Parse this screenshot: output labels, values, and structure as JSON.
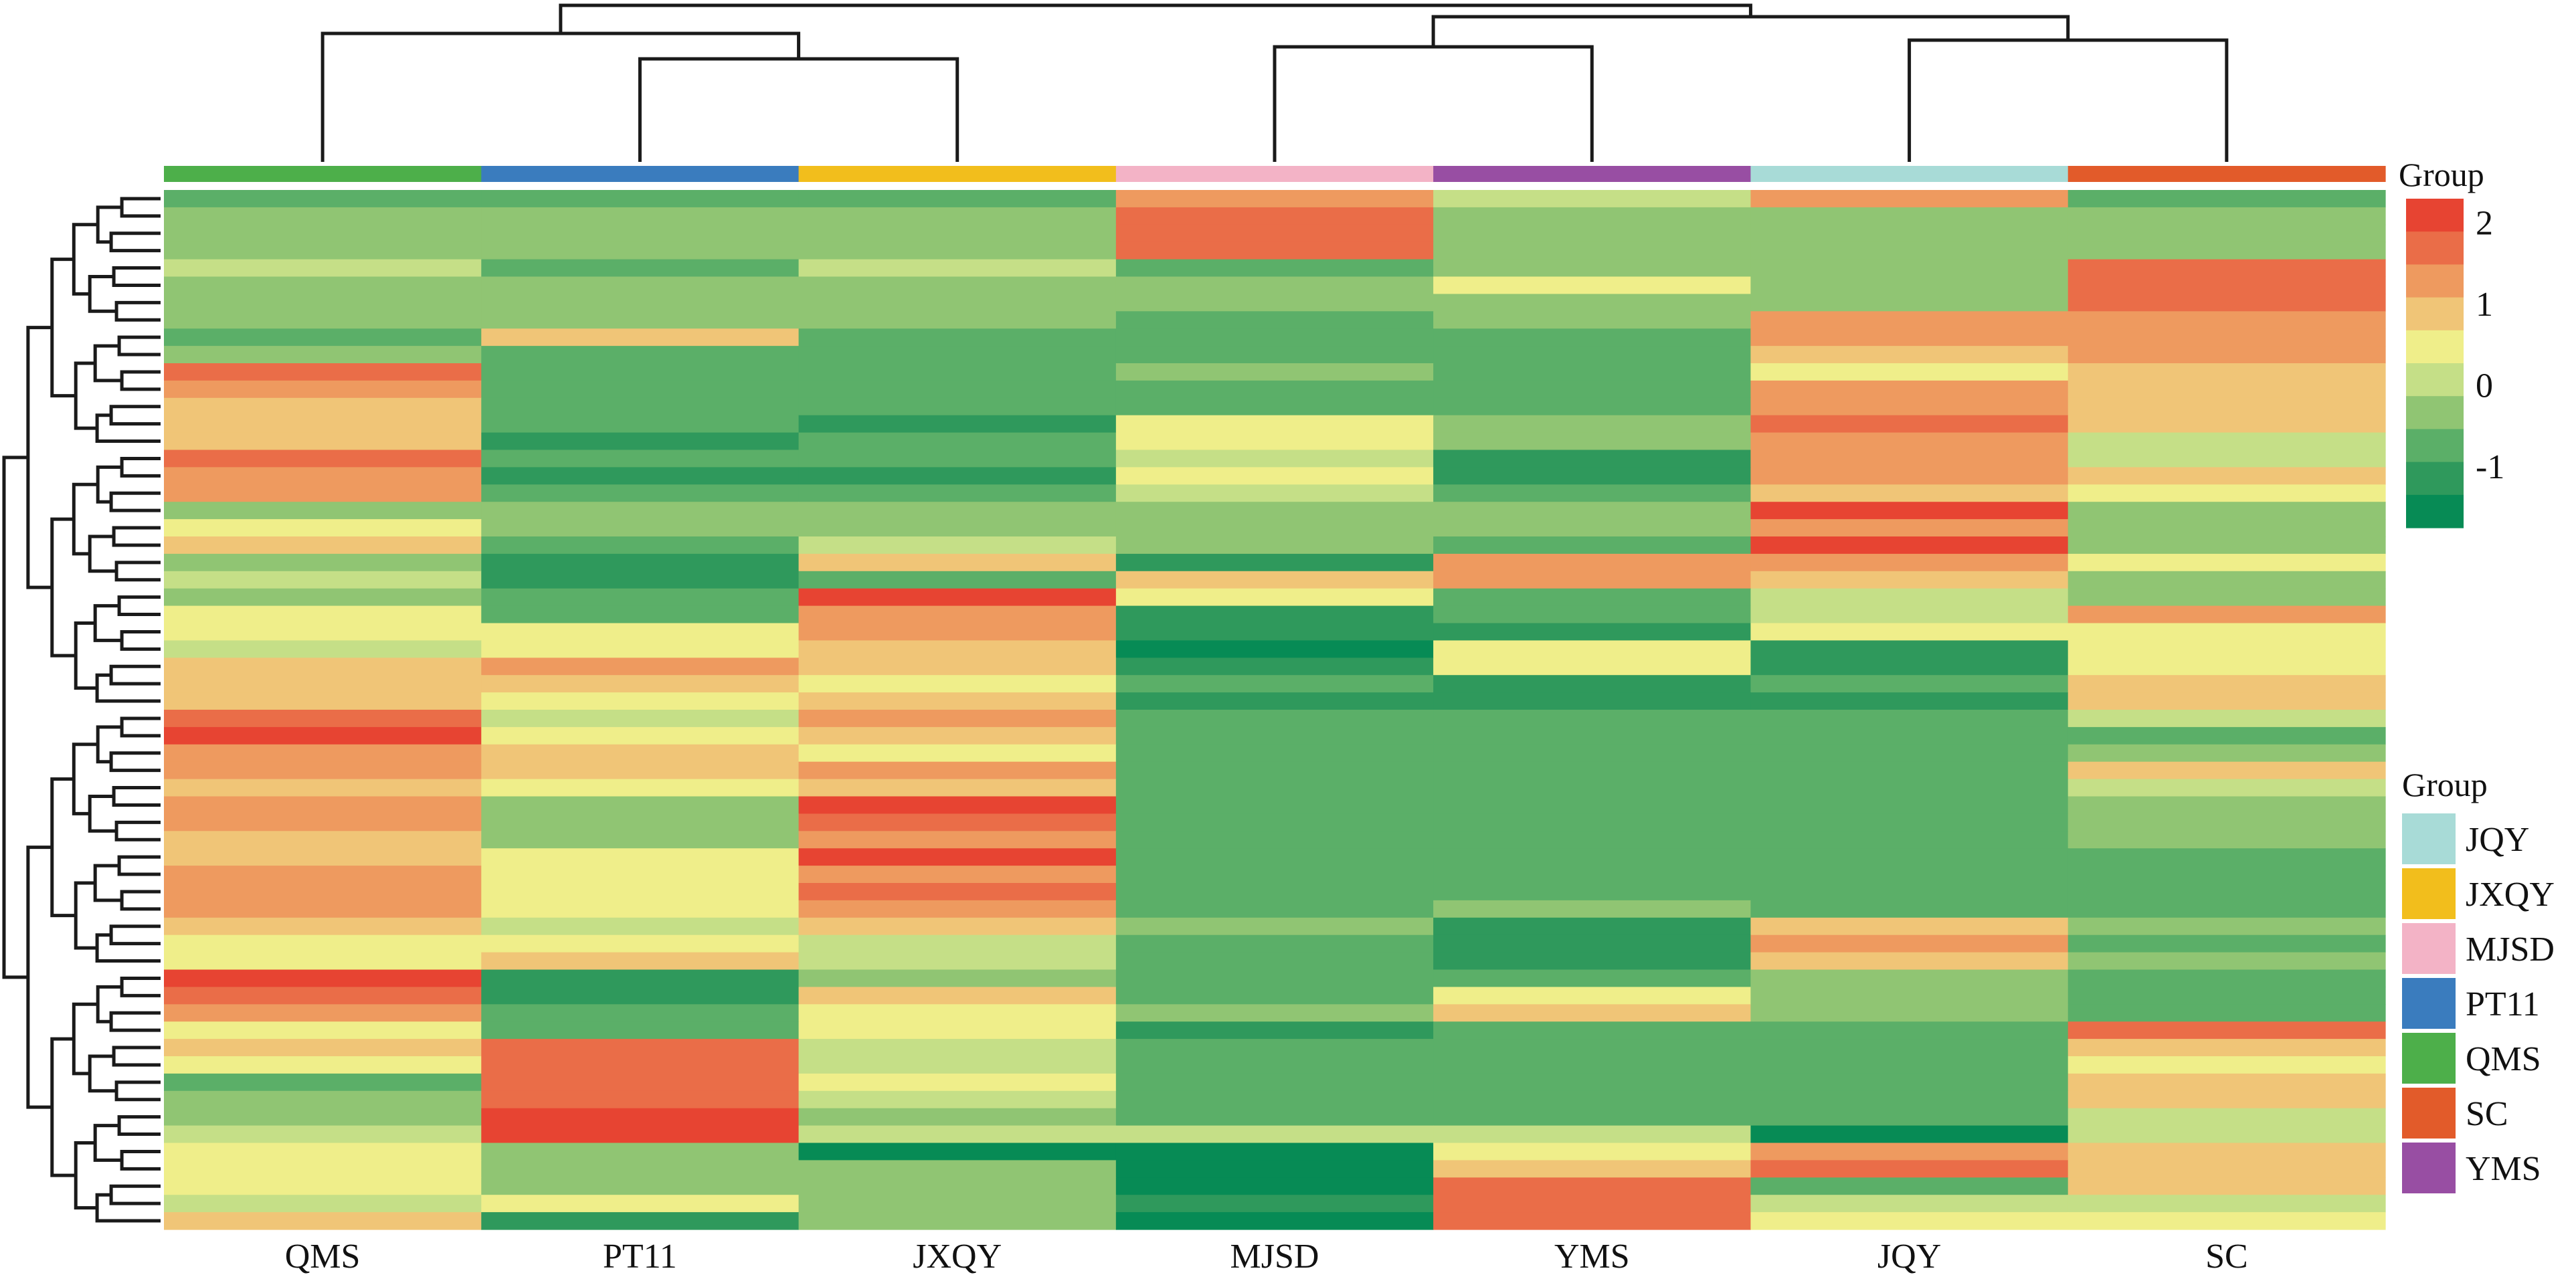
{
  "chart_data": {
    "type": "heatmap",
    "title": "",
    "columns": [
      "QMS",
      "PT11",
      "JXQY",
      "MJSD",
      "YMS",
      "JQY",
      "SC"
    ],
    "column_groups": [
      "QMS",
      "PT11",
      "JXQY",
      "MJSD",
      "YMS",
      "JQY",
      "SC"
    ],
    "group_colors": {
      "JQY": "#A8DBD7",
      "JXQY": "#F2BE1C",
      "MJSD": "#F3B3C6",
      "PT11": "#3A7CBE",
      "QMS": "#4DAF4A",
      "SC": "#E25B2A",
      "YMS": "#984EA3"
    },
    "color_scale": {
      "title": "Group",
      "min": -1.5,
      "max": 2.2,
      "ticks": [
        2,
        1,
        0,
        -1
      ],
      "bins": [
        {
          "value": 2.2,
          "color": "#E74432"
        },
        {
          "value": 1.8,
          "color": "#EA6D48"
        },
        {
          "value": 1.35,
          "color": "#EE9A5F"
        },
        {
          "value": 0.95,
          "color": "#F0C577"
        },
        {
          "value": 0.45,
          "color": "#EFEE8A"
        },
        {
          "value": 0.0,
          "color": "#C5DF87"
        },
        {
          "value": -0.45,
          "color": "#90C573"
        },
        {
          "value": -0.9,
          "color": "#5BAF68"
        },
        {
          "value": -1.3,
          "color": "#2F995C"
        },
        {
          "value": -1.7,
          "color": "#078B55"
        }
      ]
    },
    "group_legend": {
      "title": "Group",
      "entries": [
        "JQY",
        "JXQY",
        "MJSD",
        "PT11",
        "QMS",
        "SC",
        "YMS"
      ]
    },
    "row_count": 60,
    "values": [
      [
        -1,
        -1,
        -1,
        1.5,
        0,
        1.5,
        -1
      ],
      [
        -0.5,
        -0.5,
        -0.5,
        2,
        -0.5,
        -0.5,
        -0.5
      ],
      [
        -0.5,
        -0.5,
        -0.5,
        2,
        -0.5,
        -0.5,
        -0.5
      ],
      [
        -0.5,
        -0.5,
        -0.5,
        2,
        -0.5,
        -0.5,
        -0.5
      ],
      [
        0,
        -1,
        0,
        -1,
        -0.5,
        -0.5,
        2
      ],
      [
        -0.5,
        -0.5,
        -0.5,
        -0.5,
        0.5,
        -0.5,
        2
      ],
      [
        -0.5,
        -0.5,
        -0.5,
        -0.5,
        -0.5,
        -0.5,
        2
      ],
      [
        -0.5,
        -0.5,
        -0.5,
        -1,
        -0.5,
        1.5,
        1.5
      ],
      [
        -1,
        1,
        -1,
        -1,
        -1,
        1.5,
        1.5
      ],
      [
        -0.5,
        -1,
        -1,
        -1,
        -1,
        1,
        1.5
      ],
      [
        2,
        -1,
        -1,
        -0.5,
        -1,
        0.5,
        1
      ],
      [
        1.5,
        -1,
        -1,
        -1,
        -1,
        1.5,
        1
      ],
      [
        1,
        -1,
        -1,
        -1,
        -1,
        1.5,
        1
      ],
      [
        1,
        -1,
        -1.5,
        0.5,
        -0.5,
        2,
        1
      ],
      [
        1,
        -1.5,
        -1,
        0.5,
        -0.5,
        1.5,
        0
      ],
      [
        2,
        -1,
        -1,
        0,
        -1.5,
        1.5,
        0
      ],
      [
        1.5,
        -1.5,
        -1.5,
        0.5,
        -1.5,
        1.5,
        1
      ],
      [
        1.5,
        -1,
        -1,
        0,
        -1,
        1,
        0.5
      ],
      [
        -0.5,
        -0.5,
        -0.5,
        -0.5,
        -0.5,
        2.2,
        -0.5
      ],
      [
        0.5,
        -0.5,
        -0.5,
        -0.5,
        -0.5,
        1.5,
        -0.5
      ],
      [
        1,
        -1,
        0,
        -0.5,
        -1,
        2.2,
        -0.5
      ],
      [
        -0.5,
        -1.5,
        1,
        -1.5,
        1.5,
        1.5,
        0.5
      ],
      [
        0,
        -1.5,
        -1,
        1,
        1.5,
        1,
        -0.5
      ],
      [
        -0.5,
        -1,
        2.2,
        0.5,
        -1,
        0,
        -0.5
      ],
      [
        0.5,
        -1,
        1.5,
        -1.5,
        -1,
        0,
        1.5
      ],
      [
        0.5,
        0.5,
        1.5,
        -1.5,
        -1.5,
        0.5,
        0.5
      ],
      [
        0,
        0.5,
        1,
        -1.7,
        0.5,
        -1.5,
        0.5
      ],
      [
        1,
        1.5,
        1,
        -1.5,
        0.5,
        -1.5,
        0.5
      ],
      [
        1,
        1,
        0.5,
        -1,
        -1.5,
        -1,
        1
      ],
      [
        1,
        0.5,
        1,
        -1.5,
        -1.5,
        -1.5,
        1
      ],
      [
        2,
        0,
        1.5,
        -1,
        -1,
        -1,
        0
      ],
      [
        2.2,
        0.5,
        1,
        -1,
        -1,
        -1,
        -1
      ],
      [
        1.5,
        1,
        0.5,
        -1,
        -1,
        -1,
        -0.5
      ],
      [
        1.5,
        1,
        1.5,
        -1,
        -1,
        -1,
        1
      ],
      [
        1,
        0.5,
        1,
        -1,
        -1,
        -1,
        0
      ],
      [
        1.5,
        -0.5,
        2.2,
        -1,
        -1,
        -1,
        -0.5
      ],
      [
        1.5,
        -0.5,
        1.8,
        -1,
        -1,
        -1,
        -0.5
      ],
      [
        1,
        -0.5,
        1.5,
        -1,
        -1,
        -1,
        -0.5
      ],
      [
        1,
        0.5,
        2.2,
        -1,
        -1,
        -1,
        -1
      ],
      [
        1.5,
        0.5,
        1.5,
        -1,
        -1,
        -1,
        -1
      ],
      [
        1.5,
        0.5,
        1.8,
        -1,
        -1,
        -1,
        -1
      ],
      [
        1.5,
        0.5,
        1.5,
        -1,
        -0.5,
        -1,
        -1
      ],
      [
        1,
        0,
        1,
        -0.5,
        -1.5,
        1,
        -0.5
      ],
      [
        0.5,
        0.5,
        0,
        -1,
        -1.5,
        1.5,
        -1
      ],
      [
        0.5,
        1,
        0,
        -1,
        -1.5,
        1,
        -0.5
      ],
      [
        2.2,
        -1.5,
        -0.5,
        -1,
        -1,
        -0.5,
        -1
      ],
      [
        1.8,
        -1.5,
        1,
        -1,
        0.5,
        -0.5,
        -1
      ],
      [
        1.5,
        -1,
        0.5,
        -0.5,
        1,
        -0.5,
        -1
      ],
      [
        0.5,
        -1,
        0.5,
        -1.5,
        -1,
        -1,
        1.8
      ],
      [
        1,
        1.8,
        0,
        -1,
        -1,
        -1,
        1
      ],
      [
        0.5,
        1.8,
        0,
        -1,
        -1,
        -1,
        0.5
      ],
      [
        -1,
        1.8,
        0.5,
        -1,
        -1,
        -1,
        1
      ],
      [
        -0.5,
        1.8,
        0,
        -1,
        -1,
        -1,
        1
      ],
      [
        -0.5,
        2.2,
        -0.5,
        -1,
        -1,
        -1,
        0
      ],
      [
        0,
        2.2,
        0,
        0,
        0,
        -1.7,
        0
      ],
      [
        0.5,
        -0.5,
        -1.7,
        -1.7,
        0.5,
        1.5,
        1
      ],
      [
        0.5,
        -0.5,
        -0.5,
        -1.7,
        1,
        1.8,
        1
      ],
      [
        0.5,
        -0.5,
        -0.5,
        -1.7,
        1.8,
        -1,
        1
      ],
      [
        0,
        0.5,
        -0.5,
        -1.5,
        1.8,
        0,
        0
      ],
      [
        1,
        -1.5,
        -0.5,
        -1.7,
        1.8,
        0.5,
        0.5
      ]
    ]
  }
}
